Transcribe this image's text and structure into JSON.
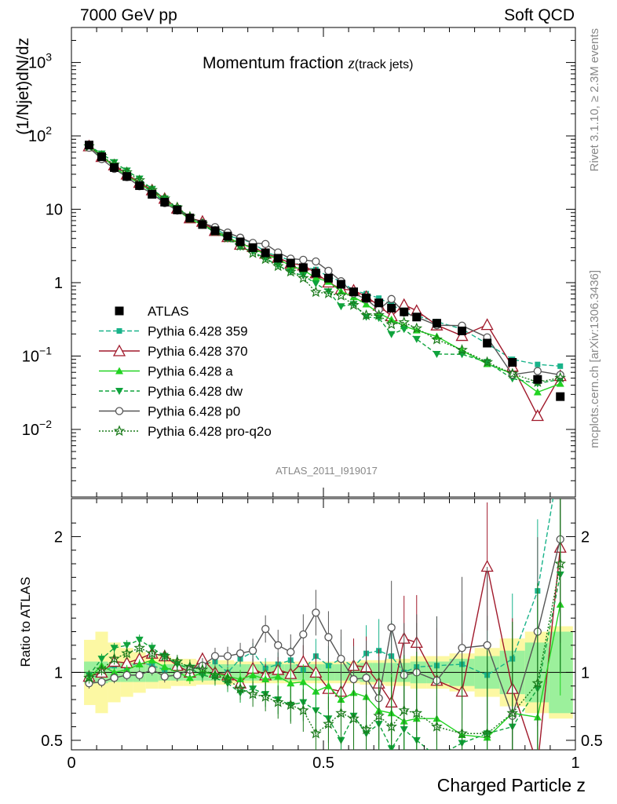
{
  "header": {
    "left": "7000 GeV pp",
    "right": "Soft QCD"
  },
  "chart_data": {
    "type": "line",
    "title": "Momentum fraction",
    "title_math": "z",
    "title_sub": "(track jets)",
    "xlabel": "Charged Particle z",
    "ylabel": "(1/Njet)dN/dz",
    "ratio_ylabel": "Ratio to ATLAS",
    "analysis_id": "ATLAS_2011_I919017",
    "side_label_top": "Rivet 3.1.10, ≥ 2.3M events",
    "side_label_bottom": "mcplots.cern.ch [arXiv:1306.3436]",
    "xlim": [
      0,
      1
    ],
    "ylim": [
      0.0012,
      3000
    ],
    "yscale": "log",
    "ratio_ylim": [
      0.43,
      2.28
    ],
    "x_ticks": [
      {
        "value": 0,
        "label": "0"
      },
      {
        "value": 0.5,
        "label": "0.5"
      },
      {
        "value": 1,
        "label": "1"
      }
    ],
    "y_ticks": [
      {
        "value": 1000,
        "base": "10",
        "exp": "3"
      },
      {
        "value": 100,
        "base": "10",
        "exp": "2"
      },
      {
        "value": 10,
        "base": "10",
        "exp": ""
      },
      {
        "value": 1,
        "base": "1",
        "exp": ""
      },
      {
        "value": 0.1,
        "base": "10",
        "exp": "−1"
      },
      {
        "value": 0.01,
        "base": "10",
        "exp": "−2"
      }
    ],
    "ratio_ticks": [
      {
        "value": 0.5,
        "label": "0.5"
      },
      {
        "value": 1,
        "label": "1"
      },
      {
        "value": 2,
        "label": "2"
      }
    ],
    "x": [
      0.035,
      0.06,
      0.085,
      0.11,
      0.135,
      0.16,
      0.185,
      0.21,
      0.235,
      0.26,
      0.285,
      0.31,
      0.335,
      0.36,
      0.385,
      0.41,
      0.435,
      0.46,
      0.485,
      0.51,
      0.535,
      0.56,
      0.585,
      0.61,
      0.635,
      0.66,
      0.685,
      0.725,
      0.775,
      0.825,
      0.875,
      0.925,
      0.97
    ],
    "legend": [
      {
        "name": "ATLAS"
      },
      {
        "name": "Pythia 6.428 359"
      },
      {
        "name": "Pythia 6.428 370"
      },
      {
        "name": "Pythia 6.428 a"
      },
      {
        "name": "Pythia 6.428 dw"
      },
      {
        "name": "Pythia 6.428 p0"
      },
      {
        "name": "Pythia 6.428 pro-q2o"
      }
    ],
    "data": {
      "name": "ATLAS",
      "values": [
        75,
        52,
        37,
        28,
        21,
        16,
        12.5,
        9.8,
        7.6,
        6.2,
        5.1,
        4.3,
        3.6,
        3.0,
        2.55,
        2.15,
        1.85,
        1.6,
        1.35,
        1.15,
        0.95,
        0.75,
        0.62,
        0.53,
        0.45,
        0.4,
        0.34,
        0.28,
        0.22,
        0.15,
        0.082,
        0.048,
        0.028
      ],
      "color": "#000000",
      "band_stat": [
        0.08,
        0.08,
        0.07,
        0.07,
        0.07,
        0.07,
        0.06,
        0.06,
        0.06,
        0.06,
        0.06,
        0.06,
        0.06,
        0.06,
        0.06,
        0.06,
        0.06,
        0.06,
        0.06,
        0.06,
        0.06,
        0.06,
        0.07,
        0.07,
        0.07,
        0.07,
        0.08,
        0.08,
        0.1,
        0.12,
        0.16,
        0.22,
        0.3
      ],
      "band_total": [
        0.24,
        0.3,
        0.22,
        0.18,
        0.15,
        0.12,
        0.12,
        0.1,
        0.1,
        0.09,
        0.09,
        0.09,
        0.08,
        0.08,
        0.08,
        0.08,
        0.08,
        0.08,
        0.08,
        0.08,
        0.08,
        0.08,
        0.09,
        0.09,
        0.1,
        0.1,
        0.12,
        0.12,
        0.14,
        0.18,
        0.25,
        0.3,
        0.34
      ]
    },
    "series": [
      {
        "name": "Pythia 6.428 359",
        "color": "#19b38a",
        "marker": "square",
        "dash": "6,3",
        "ratio": [
          0.94,
          1.0,
          1.05,
          1.03,
          1.08,
          1.05,
          1.02,
          1.04,
          1.01,
          1.06,
          1.08,
          1.0,
          1.1,
          1.15,
          1.03,
          1.06,
          1.09,
          1.02,
          1.12,
          1.05,
          1.1,
          1.04,
          1.14,
          1.16,
          1.12,
          1.0,
          1.04,
          1.05,
          1.06,
          0.98,
          1.1,
          1.6,
          2.6
        ]
      },
      {
        "name": "Pythia 6.428 370",
        "color": "#a0192b",
        "marker": "triangle-open",
        "dash": "",
        "ratio": [
          0.97,
          1.0,
          1.08,
          1.07,
          1.1,
          1.14,
          1.12,
          1.05,
          1.0,
          1.1,
          1.0,
          0.98,
          0.92,
          1.03,
          0.98,
          1.02,
          0.99,
          1.08,
          1.0,
          0.88,
          0.86,
          1.05,
          1.04,
          0.92,
          0.78,
          1.25,
          1.22,
          0.94,
          0.86,
          1.78,
          0.88,
          0.32,
          1.92
        ]
      },
      {
        "name": "Pythia 6.428 a",
        "color": "#22d322",
        "marker": "triangle",
        "dash": "",
        "ratio": [
          0.96,
          1.05,
          1.0,
          1.02,
          1.06,
          1.09,
          1.04,
          1.0,
          0.96,
          1.0,
          0.99,
          0.97,
          0.95,
          0.98,
          0.95,
          0.97,
          0.92,
          0.93,
          0.86,
          0.9,
          0.8,
          0.85,
          0.82,
          0.72,
          0.7,
          0.64,
          0.66,
          0.66,
          0.54,
          0.52,
          0.7,
          0.67,
          1.5
        ]
      },
      {
        "name": "Pythia 6.428 dw",
        "color": "#0fa33c",
        "marker": "triangle-down",
        "dash": "5,3",
        "ratio": [
          0.98,
          1.1,
          1.18,
          1.2,
          1.24,
          1.18,
          1.12,
          1.06,
          1.03,
          0.98,
          0.96,
          0.92,
          0.85,
          0.88,
          0.84,
          0.8,
          0.76,
          0.78,
          0.72,
          0.66,
          0.5,
          0.68,
          0.55,
          0.62,
          0.44,
          0.58,
          0.5,
          0.38,
          0.48,
          0.55,
          0.6,
          0.88,
          1.72
        ]
      },
      {
        "name": "Pythia 6.428 p0",
        "color": "#555555",
        "marker": "circle-open",
        "dash": "",
        "ratio": [
          0.92,
          0.93,
          0.96,
          0.98,
          0.98,
          1.02,
          0.97,
          0.98,
          1.02,
          1.05,
          1.12,
          1.12,
          1.14,
          1.16,
          1.32,
          1.2,
          1.15,
          1.28,
          1.44,
          1.26,
          1.1,
          0.95,
          0.96,
          0.81,
          1.33,
          0.98,
          1.0,
          0.94,
          1.18,
          1.2,
          0.68,
          1.3,
          1.98
        ]
      },
      {
        "name": "Pythia 6.428 pro-q2o",
        "color": "#1a7a1a",
        "marker": "star",
        "dash": "2,2",
        "ratio": [
          0.96,
          1.02,
          1.1,
          1.14,
          1.18,
          1.14,
          1.12,
          1.08,
          1.04,
          1.02,
          0.98,
          0.95,
          0.88,
          0.84,
          0.82,
          0.78,
          0.76,
          0.72,
          0.55,
          0.62,
          0.7,
          0.66,
          0.58,
          0.68,
          0.6,
          0.72,
          0.7,
          0.6,
          0.55,
          0.55,
          0.7,
          0.92,
          1.8
        ]
      }
    ]
  }
}
